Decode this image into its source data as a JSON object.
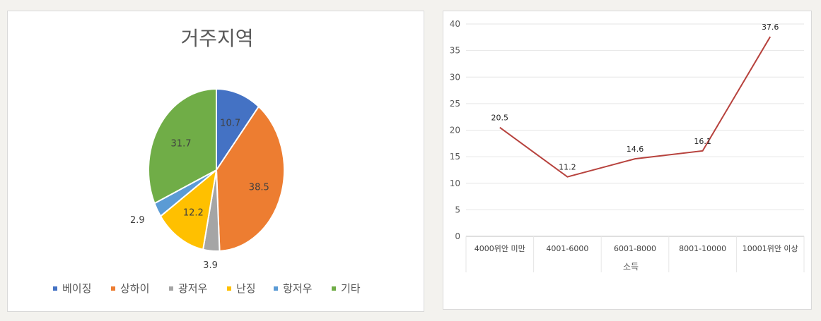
{
  "chart_data": [
    {
      "type": "pie",
      "title": "거주지역",
      "slices": [
        {
          "label": "베이징",
          "value": 10.7,
          "color": "#4472c4"
        },
        {
          "label": "상하이",
          "value": 38.5,
          "color": "#ed7d31"
        },
        {
          "label": "광저우",
          "value": 3.9,
          "color": "#a5a5a5"
        },
        {
          "label": "난징",
          "value": 12.2,
          "color": "#ffc000"
        },
        {
          "label": "항저우",
          "value": 2.9,
          "color": "#5b9bd5"
        },
        {
          "label": "기타",
          "value": 31.7,
          "color": "#70ad47"
        }
      ],
      "legend_position": "bottom"
    },
    {
      "type": "line",
      "categories": [
        "4000위안 미만",
        "4001-6000",
        "6001-8000",
        "8001-10000",
        "10001위안 이상"
      ],
      "values": [
        20.5,
        11.2,
        14.6,
        16.1,
        37.6
      ],
      "xlabel": "소득",
      "ylabel": "",
      "ylim": [
        0,
        40
      ],
      "yticks": [
        0,
        5,
        10,
        15,
        20,
        25,
        30,
        35,
        40
      ],
      "line_color": "#b7423d",
      "grid": true
    }
  ]
}
